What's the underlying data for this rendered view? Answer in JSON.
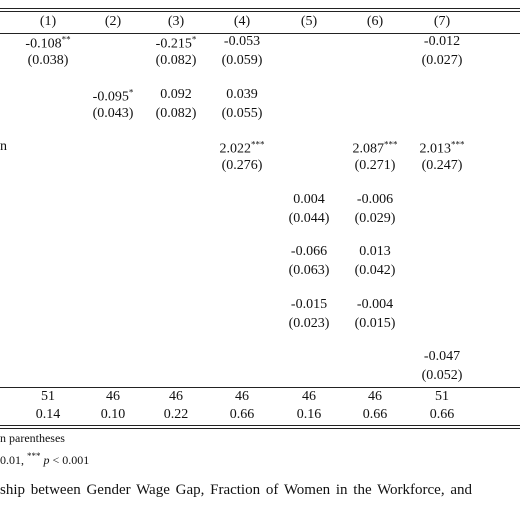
{
  "table": {
    "header": [
      "(1)",
      "(2)",
      "(3)",
      "(4)",
      "(5)",
      "(6)",
      "(7)"
    ],
    "rows": [
      {
        "cells": [
          {
            "coef": "-0.108",
            "stars": "**",
            "se": "(0.038)"
          },
          null,
          {
            "coef": "-0.215",
            "stars": "*",
            "se": "(0.082)"
          },
          {
            "coef": "-0.053",
            "se": "(0.059)"
          },
          null,
          null,
          {
            "coef": "-0.012",
            "se": "(0.027)"
          }
        ]
      },
      {
        "cells": [
          null,
          {
            "coef": "-0.095",
            "stars": "*",
            "se": "(0.043)"
          },
          {
            "coef": "0.092",
            "se": "(0.082)"
          },
          {
            "coef": "0.039",
            "se": "(0.055)"
          },
          null,
          null,
          null
        ]
      },
      {
        "label": "n",
        "cells": [
          null,
          null,
          null,
          {
            "coef": "2.022",
            "stars": "***",
            "se": "(0.276)"
          },
          null,
          {
            "coef": "2.087",
            "stars": "***",
            "se": "(0.271)"
          },
          {
            "coef": "2.013",
            "stars": "***",
            "se": "(0.247)"
          }
        ]
      },
      {
        "cells": [
          null,
          null,
          null,
          null,
          {
            "coef": "0.004",
            "se": "(0.044)"
          },
          {
            "coef": "-0.006",
            "se": "(0.029)"
          },
          null
        ]
      },
      {
        "cells": [
          null,
          null,
          null,
          null,
          {
            "coef": "-0.066",
            "se": "(0.063)"
          },
          {
            "coef": "0.013",
            "se": "(0.042)"
          },
          null
        ]
      },
      {
        "cells": [
          null,
          null,
          null,
          null,
          {
            "coef": "-0.015",
            "se": "(0.023)"
          },
          {
            "coef": "-0.004",
            "se": "(0.015)"
          },
          null
        ]
      },
      {
        "cells": [
          null,
          null,
          null,
          null,
          null,
          null,
          {
            "coef": "-0.047",
            "se": "(0.052)"
          }
        ]
      }
    ],
    "stats": [
      [
        "51",
        "46",
        "46",
        "46",
        "46",
        "46",
        "51"
      ],
      [
        "0.14",
        "0.10",
        "0.22",
        "0.66",
        "0.16",
        "0.66",
        "0.66"
      ]
    ]
  },
  "notes": {
    "line1": "n parentheses",
    "line2": {
      "pre": "0.01,",
      "sup": "***",
      "italic": "p",
      "post": "< 0.001"
    }
  },
  "caption": "ship between Gender Wage Gap, Fraction of Women in the Workforce, and"
}
